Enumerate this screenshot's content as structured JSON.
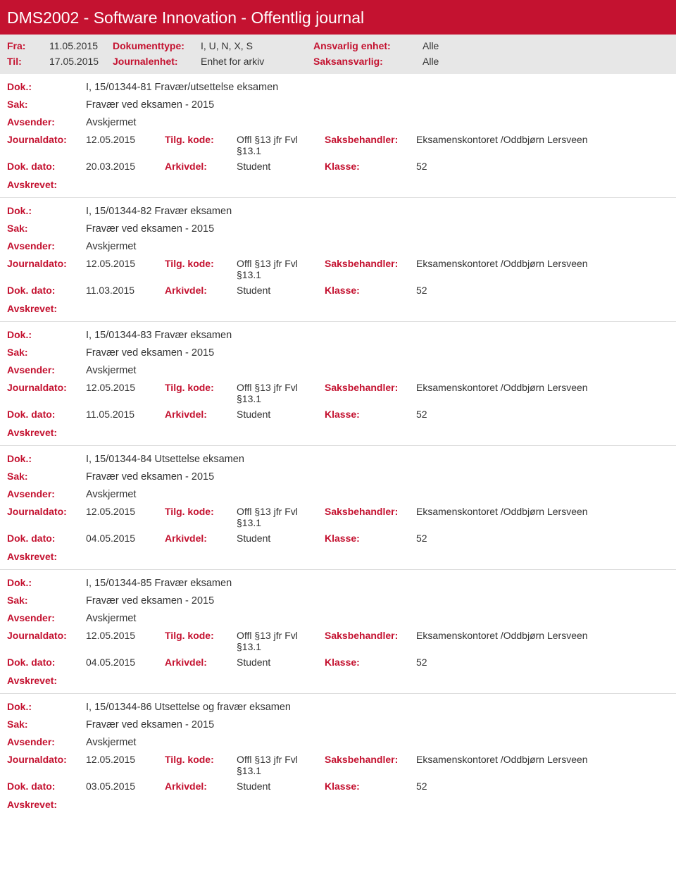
{
  "banner": {
    "title": "DMS2002 - Software Innovation - Offentlig journal"
  },
  "meta": {
    "fra_lbl": "Fra:",
    "fra_val": "11.05.2015",
    "til_lbl": "Til:",
    "til_val": "17.05.2015",
    "doktype_lbl": "Dokumenttype:",
    "doktype_val": "I, U, N, X, S",
    "jenhet_lbl": "Journalenhet:",
    "jenhet_val": "Enhet for arkiv",
    "ansvenhet_lbl": "Ansvarlig enhet:",
    "ansvenhet_val": "Alle",
    "saksansv_lbl": "Saksansvarlig:",
    "saksansv_val": "Alle"
  },
  "labels": {
    "dok": "Dok.:",
    "sak": "Sak:",
    "avsender": "Avsender:",
    "journaldato": "Journaldato:",
    "dokdato": "Dok. dato:",
    "tilgkode": "Tilg. kode:",
    "arkivdel": "Arkivdel:",
    "saksbeh": "Saksbehandler:",
    "klasse": "Klasse:",
    "avskrevet": "Avskrevet:"
  },
  "common": {
    "sak": "Fravær ved eksamen - 2015",
    "avsender": "Avskjermet",
    "journaldato": "12.05.2015",
    "tilgkode": "Offl §13 jfr Fvl §13.1",
    "arkivdel": "Student",
    "saksbeh": "Eksamenskontoret /Oddbjørn Lersveen",
    "klasse": "52"
  },
  "entries": [
    {
      "dok": "I, 15/01344-81 Fravær/utsettelse eksamen",
      "dokdato": "20.03.2015"
    },
    {
      "dok": "I, 15/01344-82 Fravær eksamen",
      "dokdato": "11.03.2015"
    },
    {
      "dok": "I, 15/01344-83 Fravær eksamen",
      "dokdato": "11.05.2015"
    },
    {
      "dok": "I, 15/01344-84 Utsettelse eksamen",
      "dokdato": "04.05.2015"
    },
    {
      "dok": "I, 15/01344-85 Fravær eksamen",
      "dokdato": "04.05.2015"
    },
    {
      "dok": "I, 15/01344-86 Utsettelse og fravær eksamen",
      "dokdato": "03.05.2015"
    }
  ]
}
